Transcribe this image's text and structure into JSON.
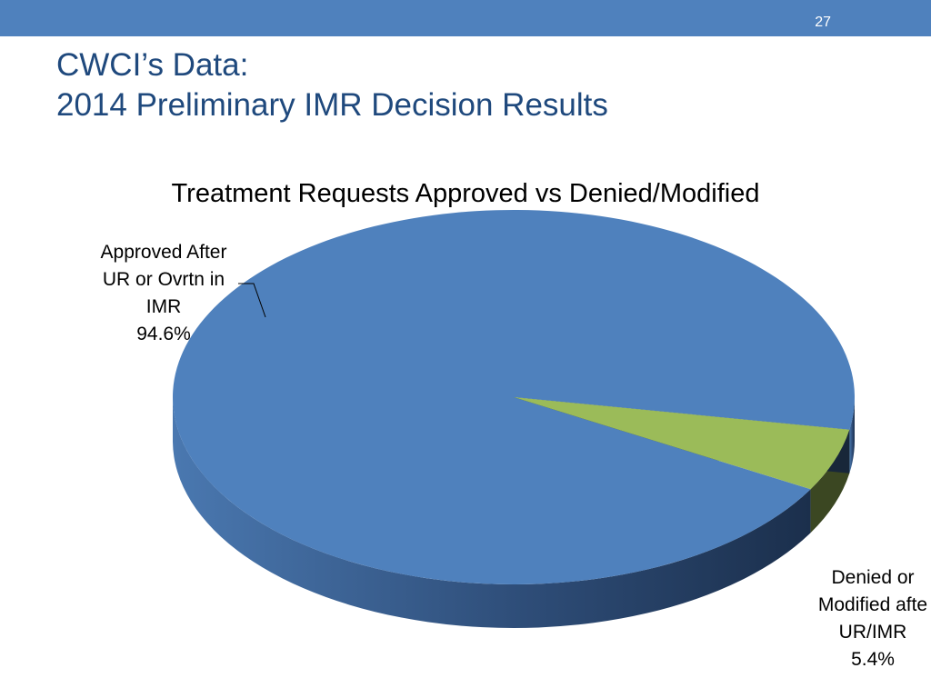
{
  "slide": {
    "number": "27",
    "title_line1": "CWCI’s Data:",
    "title_line2": "2014 Preliminary IMR Decision Results"
  },
  "colors": {
    "header_bar": "#4f81bd",
    "title_text": "#1f497d",
    "approved_slice": "#4f81bd",
    "denied_slice": "#9bbb59"
  },
  "chart_data": {
    "type": "pie",
    "title": "Treatment Requests Approved vs Denied/Modified",
    "slices": [
      {
        "label_lines": [
          "Approved After",
          "UR or Ovrtn in",
          "IMR"
        ],
        "value": 94.6,
        "value_label": "94.6%",
        "color": "#4f81bd"
      },
      {
        "label_lines": [
          "Denied or",
          "Modified afte",
          "UR/IMR"
        ],
        "value": 5.4,
        "value_label": "5.4%",
        "color": "#9bbb59"
      }
    ],
    "legend": "none",
    "style": "3d"
  }
}
